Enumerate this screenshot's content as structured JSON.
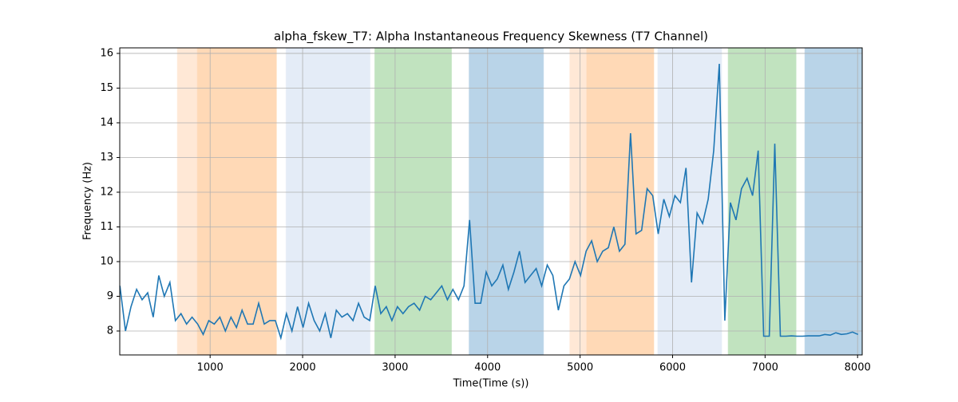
{
  "chart_data": {
    "type": "line",
    "title": "alpha_fskew_T7: Alpha Instantaneous Frequency Skewness (T7 Channel)",
    "xlabel": "Time(Time (s))",
    "ylabel": "Frequency (Hz)",
    "x": [
      25,
      85,
      145,
      205,
      265,
      325,
      385,
      445,
      505,
      565,
      625,
      685,
      745,
      805,
      865,
      925,
      985,
      1045,
      1105,
      1165,
      1225,
      1285,
      1345,
      1405,
      1465,
      1525,
      1585,
      1645,
      1705,
      1765,
      1825,
      1885,
      1945,
      2005,
      2065,
      2125,
      2185,
      2245,
      2305,
      2365,
      2425,
      2485,
      2545,
      2605,
      2665,
      2725,
      2785,
      2845,
      2905,
      2965,
      3025,
      3085,
      3145,
      3205,
      3265,
      3325,
      3385,
      3445,
      3505,
      3565,
      3625,
      3685,
      3745,
      3805,
      3865,
      3925,
      3985,
      4045,
      4105,
      4165,
      4225,
      4285,
      4345,
      4405,
      4465,
      4525,
      4585,
      4645,
      4705,
      4765,
      4825,
      4885,
      4945,
      5005,
      5065,
      5125,
      5185,
      5245,
      5305,
      5365,
      5425,
      5485,
      5545,
      5605,
      5665,
      5725,
      5785,
      5845,
      5905,
      5965,
      6025,
      6085,
      6145,
      6205,
      6265,
      6325,
      6385,
      6445,
      6505,
      6565,
      6625,
      6685,
      6745,
      6805,
      6865,
      6925,
      6985,
      7045,
      7105,
      7165,
      7225,
      7285,
      7345,
      7405,
      7465,
      7525,
      7585,
      7645,
      7705,
      7765,
      7825,
      7885,
      7945,
      8005
    ],
    "series": [
      {
        "color": "#1f77b4",
        "values": [
          9.3,
          8.0,
          8.7,
          9.2,
          8.9,
          9.1,
          8.4,
          9.6,
          9.0,
          9.4,
          8.3,
          8.5,
          8.2,
          8.4,
          8.2,
          7.9,
          8.3,
          8.2,
          8.4,
          8.0,
          8.4,
          8.1,
          8.6,
          8.2,
          8.2,
          8.8,
          8.2,
          8.3,
          8.3,
          7.8,
          8.5,
          8.0,
          8.7,
          8.1,
          8.8,
          8.3,
          8.0,
          8.5,
          7.8,
          8.6,
          8.4,
          8.5,
          8.3,
          8.8,
          8.4,
          8.3,
          9.3,
          8.5,
          8.7,
          8.3,
          8.7,
          8.5,
          8.7,
          8.8,
          8.6,
          9.0,
          8.9,
          9.1,
          9.3,
          8.9,
          9.2,
          8.9,
          9.3,
          11.2,
          8.8,
          8.8,
          9.7,
          9.3,
          9.5,
          9.9,
          9.2,
          9.7,
          10.3,
          9.4,
          9.6,
          9.8,
          9.3,
          9.9,
          9.6,
          8.6,
          9.3,
          9.5,
          10.0,
          9.6,
          10.3,
          10.6,
          10.0,
          10.3,
          10.4,
          11.0,
          10.3,
          10.5,
          13.7,
          10.8,
          10.9,
          12.1,
          11.9,
          10.8,
          11.8,
          11.3,
          11.9,
          11.7,
          12.7,
          9.4,
          11.4,
          11.1,
          11.8,
          13.2,
          15.7,
          8.3,
          11.7,
          11.2,
          12.1,
          12.4,
          11.9,
          13.2,
          7.85,
          7.85,
          13.4,
          7.85,
          7.85,
          7.86,
          7.85,
          7.85,
          7.86,
          7.86,
          7.86,
          7.9,
          7.88,
          7.95,
          7.9,
          7.92,
          7.97,
          7.9
        ]
      }
    ],
    "spans": [
      {
        "start": 646,
        "end": 862,
        "color": "#ffe8d6"
      },
      {
        "start": 862,
        "end": 1717,
        "color": "#ffd9b6"
      },
      {
        "start": 1821,
        "end": 2729,
        "color": "#e4ecf7"
      },
      {
        "start": 2780,
        "end": 3610,
        "color": "#c1e3bf"
      },
      {
        "start": 3800,
        "end": 4604,
        "color": "#b9d4e8"
      },
      {
        "start": 4889,
        "end": 5071,
        "color": "#ffe8d6"
      },
      {
        "start": 5071,
        "end": 5797,
        "color": "#ffd9b6"
      },
      {
        "start": 5840,
        "end": 6531,
        "color": "#e4ecf7"
      },
      {
        "start": 6601,
        "end": 7335,
        "color": "#c1e3bf"
      },
      {
        "start": 7430,
        "end": 8045,
        "color": "#b9d4e8"
      }
    ],
    "xlim": [
      23,
      8050
    ],
    "ylim": [
      7.31,
      16.16
    ],
    "xticks": [
      1000,
      2000,
      3000,
      4000,
      5000,
      6000,
      7000,
      8000
    ],
    "yticks": [
      8,
      9,
      10,
      11,
      12,
      13,
      14,
      15,
      16
    ],
    "grid": true
  }
}
